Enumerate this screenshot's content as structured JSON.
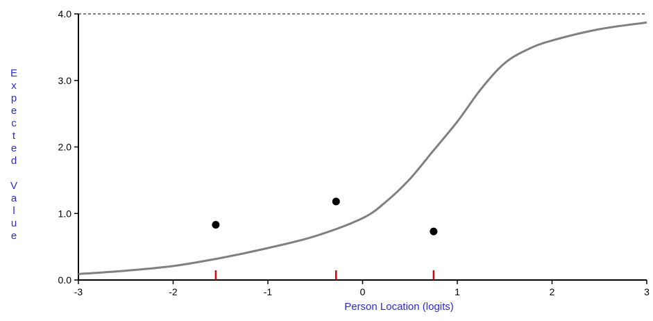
{
  "chart_data": {
    "type": "line",
    "xlabel": "Person Location (logits)",
    "ylabel": "Expected Value",
    "xlim": [
      -3,
      3
    ],
    "ylim": [
      0,
      4
    ],
    "x_ticks": [
      -3,
      -2,
      -1,
      0,
      1,
      2,
      3
    ],
    "x_tick_labels": [
      "-3",
      "-2",
      "-1",
      "0",
      "1",
      "2",
      "3"
    ],
    "y_ticks": [
      0,
      1,
      2,
      3,
      4
    ],
    "y_tick_labels": [
      "0.0",
      "1.0",
      "2.0",
      "3.0",
      "4.0"
    ],
    "max_reference_line": 4,
    "curve": {
      "x": [
        -3.0,
        -2.5,
        -2.0,
        -1.5,
        -1.0,
        -0.5,
        0.0,
        0.25,
        0.5,
        0.75,
        1.0,
        1.25,
        1.5,
        1.75,
        2.0,
        2.5,
        3.0
      ],
      "y": [
        0.09,
        0.14,
        0.21,
        0.33,
        0.48,
        0.66,
        0.93,
        1.18,
        1.52,
        1.95,
        2.38,
        2.87,
        3.26,
        3.47,
        3.6,
        3.77,
        3.87
      ]
    },
    "observed_points": {
      "x": [
        -1.55,
        -0.28,
        0.75
      ],
      "y": [
        0.83,
        1.18,
        0.73
      ]
    },
    "class_interval_markers": [
      -1.55,
      -0.28,
      0.75
    ],
    "colors": {
      "curve": "#808080",
      "points": "#000000",
      "markers": "#e00000",
      "axis_title": "#2a2ad6",
      "axis": "#000000"
    }
  }
}
